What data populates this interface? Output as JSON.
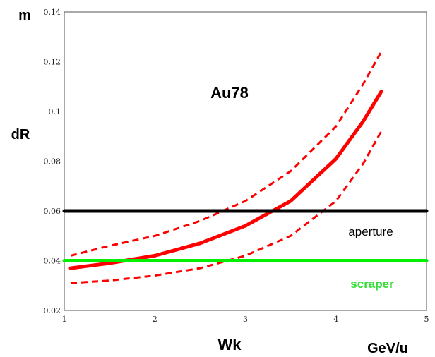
{
  "chart_data": {
    "type": "line",
    "title": "Au78",
    "title_color": "#ff0000",
    "xlabel": "Wk",
    "x_unit": "GeV/u",
    "ylabel": "dR",
    "y_unit": "m",
    "xlim": [
      1,
      5
    ],
    "ylim": [
      0.02,
      0.14
    ],
    "x_ticks": [
      "1",
      "2",
      "3",
      "4",
      "5"
    ],
    "y_ticks": [
      "0.02",
      "0.04",
      "0.06",
      "0.08",
      "0.1",
      "0.12",
      "0.14"
    ],
    "grid": false,
    "series": [
      {
        "style": "solid",
        "color": "#ff0000",
        "x": [
          1.07,
          1.5,
          2.0,
          2.5,
          3.0,
          3.5,
          4.0,
          4.3,
          4.5
        ],
        "y": [
          0.037,
          0.039,
          0.042,
          0.047,
          0.054,
          0.064,
          0.081,
          0.096,
          0.108
        ]
      },
      {
        "style": "dashed",
        "color": "#ff0000",
        "x": [
          1.07,
          1.5,
          2.0,
          2.5,
          3.0,
          3.5,
          4.0,
          4.3,
          4.5
        ],
        "y": [
          0.042,
          0.046,
          0.05,
          0.056,
          0.064,
          0.076,
          0.094,
          0.111,
          0.124
        ]
      },
      {
        "style": "dashed",
        "color": "#ff0000",
        "x": [
          1.07,
          1.5,
          2.0,
          2.5,
          3.0,
          3.5,
          4.0,
          4.3,
          4.5
        ],
        "y": [
          0.031,
          0.032,
          0.034,
          0.037,
          0.042,
          0.05,
          0.064,
          0.079,
          0.092
        ]
      },
      {
        "name": "aperture",
        "style": "solid",
        "color": "#000000",
        "x": [
          1,
          5
        ],
        "y": [
          0.06,
          0.06
        ]
      },
      {
        "name": "scraper",
        "style": "solid",
        "color": "#00ee00",
        "x": [
          1,
          5
        ],
        "y": [
          0.04,
          0.04
        ]
      }
    ]
  }
}
